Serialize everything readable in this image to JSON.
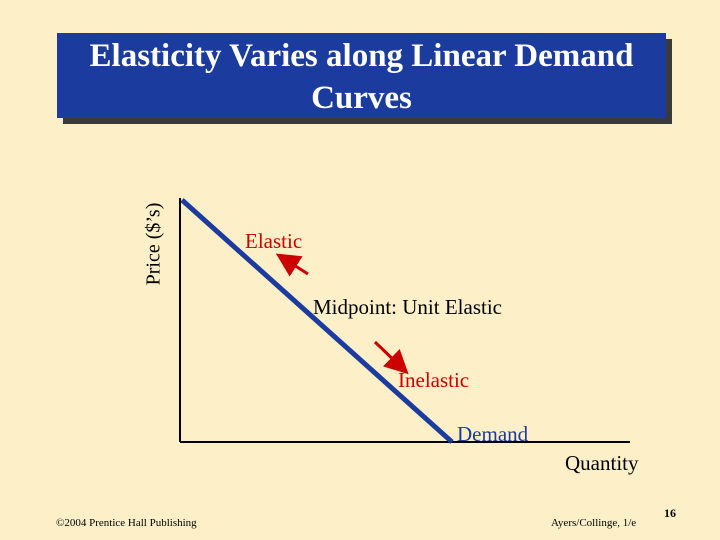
{
  "title": {
    "line1": "Elasticity Varies along Linear Demand",
    "line2": "Curves"
  },
  "axes": {
    "y_label": "Price ($’s)",
    "x_label": "Quantity"
  },
  "labels": {
    "elastic": "Elastic",
    "midpoint": "Midpoint:  Unit Elastic",
    "inelastic": "Inelastic",
    "demand": "Demand"
  },
  "footer": {
    "copyright": "©2004 Prentice Hall Publishing",
    "author": "Ayers/Collinge, 1/e",
    "page": "16"
  },
  "colors": {
    "background": "#fdf0c8",
    "title_box": "#1b3c9e",
    "demand_line": "#1b3c9e",
    "arrows": "#cc0000",
    "elastic_text": "#cc0000",
    "inelastic_text": "#cc0000",
    "demand_text": "#1b3c9e"
  }
}
